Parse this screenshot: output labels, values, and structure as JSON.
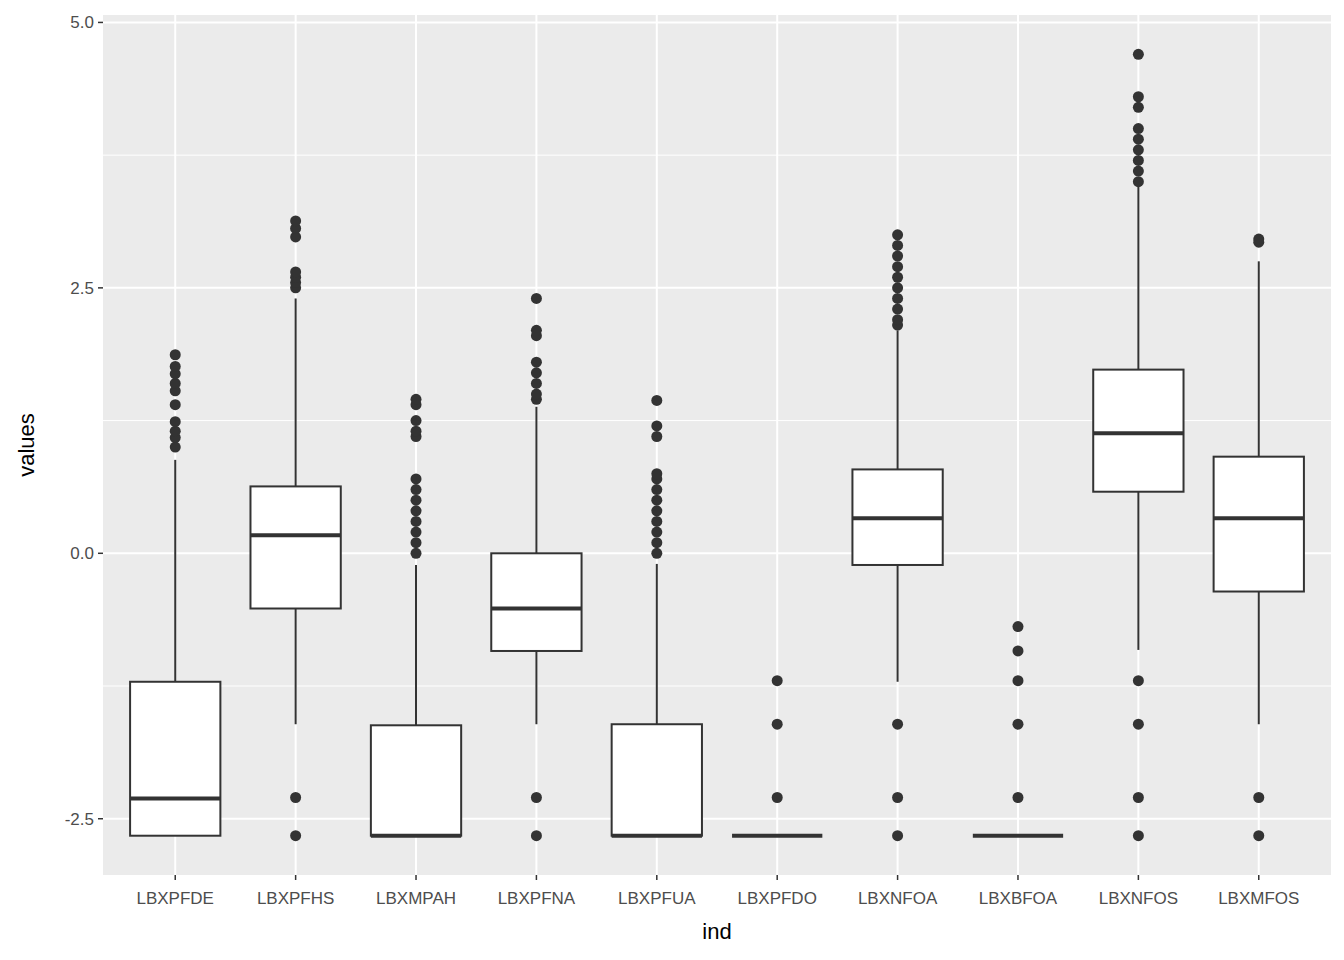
{
  "chart_data": {
    "type": "box",
    "x_label": "ind",
    "y_label": "values",
    "categories": [
      "LBXPFDE",
      "LBXPFHS",
      "LBXMPAH",
      "LBXPFNA",
      "LBXPFUA",
      "LBXPFDO",
      "LBXNFOA",
      "LBXBFOA",
      "LBXNFOS",
      "LBXMFOS"
    ],
    "boxes": [
      {
        "min": -2.66,
        "q1": -2.66,
        "median": -2.31,
        "q3": -1.21,
        "max": 0.88,
        "outliers": [
          1.0,
          1.09,
          1.15,
          1.24,
          1.4,
          1.53,
          1.6,
          1.69,
          1.76,
          1.87
        ]
      },
      {
        "min": -1.61,
        "q1": -0.52,
        "median": 0.17,
        "q3": 0.63,
        "max": 2.4,
        "outliers": [
          -2.66,
          -2.3,
          2.5,
          2.55,
          2.6,
          2.65,
          2.98,
          3.06,
          3.13
        ]
      },
      {
        "min": -2.66,
        "q1": -2.66,
        "median": -2.66,
        "q3": -1.62,
        "max": -0.11,
        "outliers": [
          0.0,
          0.1,
          0.2,
          0.3,
          0.4,
          0.5,
          0.6,
          0.7,
          1.1,
          1.15,
          1.25,
          1.4,
          1.45
        ]
      },
      {
        "min": -1.61,
        "q1": -0.92,
        "median": -0.52,
        "q3": 0.0,
        "max": 1.38,
        "outliers": [
          -2.66,
          -2.3,
          1.45,
          1.5,
          1.6,
          1.7,
          1.8,
          2.05,
          2.1,
          2.4
        ]
      },
      {
        "min": -2.66,
        "q1": -2.66,
        "median": -2.66,
        "q3": -1.61,
        "max": -0.1,
        "outliers": [
          0.0,
          0.1,
          0.2,
          0.3,
          0.4,
          0.5,
          0.6,
          0.7,
          0.75,
          1.1,
          1.2,
          1.44
        ]
      },
      {
        "min": -2.66,
        "q1": -2.66,
        "median": -2.66,
        "q3": -2.66,
        "max": -2.66,
        "outliers": [
          -2.3,
          -1.61,
          -1.2
        ]
      },
      {
        "min": -1.21,
        "q1": -0.11,
        "median": 0.33,
        "q3": 0.79,
        "max": 2.1,
        "outliers": [
          -2.66,
          -2.3,
          -1.61,
          2.15,
          2.2,
          2.3,
          2.4,
          2.5,
          2.6,
          2.7,
          2.8,
          2.9,
          3.0
        ]
      },
      {
        "min": -2.66,
        "q1": -2.66,
        "median": -2.66,
        "q3": -2.66,
        "max": -2.66,
        "outliers": [
          -2.3,
          -1.61,
          -1.2,
          -0.92,
          -0.69
        ]
      },
      {
        "min": -0.91,
        "q1": 0.58,
        "median": 1.13,
        "q3": 1.73,
        "max": 3.45,
        "outliers": [
          -2.66,
          -2.3,
          -1.61,
          -1.2,
          3.5,
          3.6,
          3.7,
          3.8,
          3.9,
          4.0,
          4.2,
          4.3,
          4.7
        ]
      },
      {
        "min": -1.61,
        "q1": -0.36,
        "median": 0.33,
        "q3": 0.91,
        "max": 2.75,
        "outliers": [
          -2.66,
          -2.3,
          2.93,
          2.96
        ]
      }
    ],
    "ylim": [
      -3.03,
      5.07
    ],
    "yticks": [
      -2.5,
      {
        "value": 0,
        "label": "0.0"
      },
      2.5,
      {
        "value": 5,
        "label": "5.0"
      }
    ],
    "grid": true
  }
}
